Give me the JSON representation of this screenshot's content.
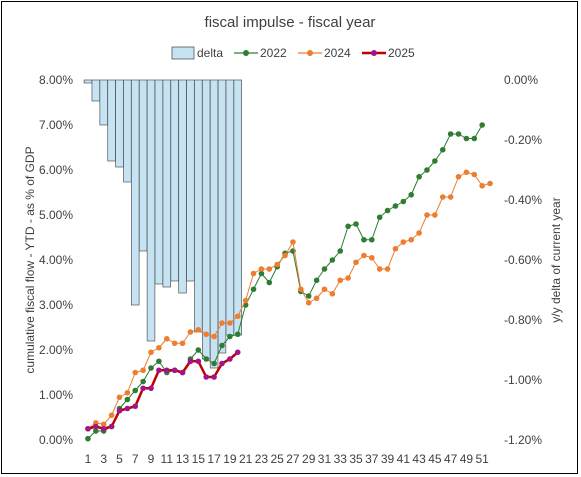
{
  "chart_data": {
    "type": "bar+line",
    "title": "fiscal impulse - fiscal year",
    "ylabel_left": "cumulative fiscal flow - YTD - as % of GDP",
    "ylabel_right": "y/y delta of current year",
    "ylim_left": [
      0,
      8
    ],
    "ylim_right": [
      -1.2,
      0
    ],
    "left_ticks": [
      "0.00%",
      "1.00%",
      "2.00%",
      "3.00%",
      "4.00%",
      "5.00%",
      "6.00%",
      "7.00%",
      "8.00%"
    ],
    "right_ticks": [
      "-1.20%",
      "-1.00%",
      "-0.80%",
      "-0.60%",
      "-0.40%",
      "-0.20%",
      "0.00%"
    ],
    "x_ticks": [
      "1",
      "3",
      "5",
      "7",
      "9",
      "11",
      "13",
      "15",
      "17",
      "19",
      "21",
      "23",
      "25",
      "27",
      "29",
      "31",
      "33",
      "35",
      "37",
      "39",
      "41",
      "43",
      "45",
      "47",
      "49",
      "51"
    ],
    "legend": [
      "delta",
      "2022",
      "2024",
      "2025"
    ],
    "colors": {
      "delta": "#c5e3f3",
      "2022": "#2e7d32",
      "2024": "#ed7d31",
      "2025": "#a0148c",
      "2025_line": "#c00000"
    },
    "delta": [
      -0.01,
      -0.07,
      -0.15,
      -0.27,
      -0.29,
      -0.34,
      -0.75,
      -0.57,
      -0.87,
      -0.68,
      -0.69,
      -0.67,
      -0.71,
      -0.67,
      -0.84,
      -0.93,
      -0.96,
      -0.91,
      -0.85,
      -0.85
    ],
    "series_2022": [
      0.03,
      0.2,
      0.2,
      0.3,
      0.7,
      0.9,
      1.1,
      1.3,
      1.6,
      1.75,
      1.5,
      1.55,
      1.5,
      1.8,
      2.0,
      1.8,
      1.7,
      2.1,
      2.3,
      2.35,
      3.0,
      3.35,
      3.7,
      3.5,
      3.85,
      4.15,
      4.2,
      3.3,
      3.2,
      3.55,
      3.8,
      4.0,
      4.2,
      4.75,
      4.8,
      4.45,
      4.45,
      4.95,
      5.1,
      5.2,
      5.3,
      5.45,
      5.85,
      6.0,
      6.2,
      6.45,
      6.8,
      6.8,
      6.7,
      6.7,
      7.0
    ],
    "series_2024": [
      0.25,
      0.38,
      0.35,
      0.55,
      0.95,
      1.05,
      1.5,
      1.55,
      1.95,
      2.05,
      2.25,
      2.15,
      2.15,
      2.4,
      2.45,
      2.35,
      2.3,
      2.6,
      2.6,
      2.75,
      3.1,
      3.7,
      3.8,
      3.8,
      3.9,
      4.1,
      4.4,
      3.35,
      3.05,
      3.15,
      3.35,
      3.25,
      3.55,
      3.6,
      3.95,
      4.1,
      4.05,
      3.8,
      3.8,
      4.25,
      4.4,
      4.45,
      4.6,
      5.0,
      5.0,
      5.4,
      5.4,
      5.85,
      5.95,
      5.9,
      5.65,
      5.7
    ],
    "series_2025": [
      0.25,
      0.3,
      0.25,
      0.3,
      0.65,
      0.7,
      0.75,
      1.15,
      1.15,
      1.55,
      1.55,
      1.55,
      1.5,
      1.75,
      1.75,
      1.4,
      1.4,
      1.7,
      1.8,
      1.95
    ]
  }
}
